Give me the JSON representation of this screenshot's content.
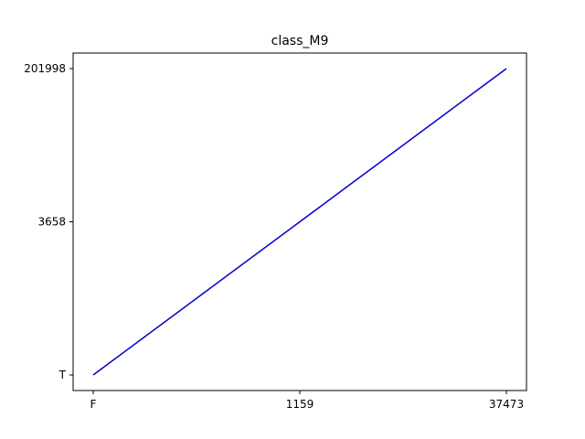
{
  "chart_data": {
    "type": "line",
    "title": "class_M9",
    "xlabel": "",
    "ylabel": "",
    "x_categories": [
      "F",
      "1159",
      "37473"
    ],
    "y_categories": [
      "T",
      "3658",
      "201998"
    ],
    "series": [
      {
        "x": [
          "F",
          "1159",
          "37473"
        ],
        "y": [
          "T",
          "3658",
          "201998"
        ],
        "color": "#0000cc"
      }
    ],
    "grid": false,
    "legend": "none"
  }
}
